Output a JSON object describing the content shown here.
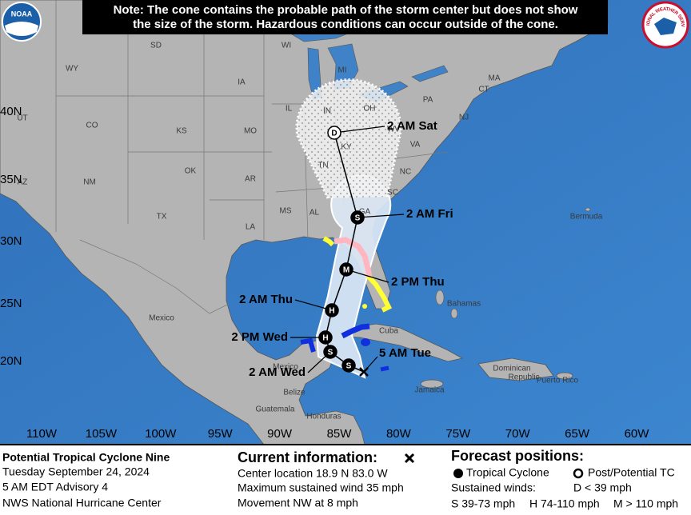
{
  "note": [
    "Note: The cone contains the probable path of the storm center but does not show",
    "the size of the storm. Hazardous conditions can occur outside of the cone."
  ],
  "logos": {
    "noaa": "NOAA",
    "nws": "NATIONAL WEATHER SERVICE"
  },
  "map": {
    "latitude_labels": [
      "40N",
      "35N",
      "30N",
      "25N",
      "20N"
    ],
    "longitude_labels": [
      "110W",
      "105W",
      "100W",
      "95W",
      "90W",
      "85W",
      "80W",
      "75W",
      "70W",
      "65W",
      "60W"
    ],
    "region_labels": [
      "WY",
      "SD",
      "WI",
      "MI",
      "IA",
      "IL",
      "IN",
      "OH",
      "PA",
      "MA",
      "CT",
      "NJ",
      "WV",
      "VA",
      "KY",
      "TN",
      "NC",
      "SC",
      "GA",
      "AL",
      "MS",
      "LA",
      "AR",
      "MO",
      "KS",
      "OK",
      "TX",
      "NM",
      "CO",
      "UT",
      "AZ",
      "Mexico",
      "Mexico",
      "Bermuda",
      "Bahamas",
      "Cuba",
      "Jamaica",
      "Dominican",
      "Republic",
      "Puerto Rico",
      "Belize",
      "Guatemala",
      "Honduras"
    ]
  },
  "forecast": {
    "points": [
      {
        "symbol": "D",
        "label": "2 AM Sat"
      },
      {
        "symbol": "S",
        "label": "2 AM Fri"
      },
      {
        "symbol": "M",
        "label": "2 PM Thu"
      },
      {
        "symbol": "H",
        "label": "2 AM Thu"
      },
      {
        "symbol": "H",
        "label": "2 PM Wed"
      },
      {
        "symbol": "S",
        "label": "2 AM Wed"
      },
      {
        "symbol": "S",
        "label": null
      }
    ],
    "current_label": "5 AM Tue"
  },
  "info": {
    "storm": "Potential Tropical Cyclone Nine",
    "date": "Tuesday September 24, 2024",
    "advisory": "5 AM EDT Advisory 4",
    "center": "NWS National Hurricane Center"
  },
  "current": {
    "title": "Current information:",
    "lines": [
      "Center location 18.9 N 83.0 W",
      "Maximum sustained wind 35 mph",
      "Movement NW at 8 mph"
    ]
  },
  "legend": {
    "title": "Forecast positions:",
    "tropical_cyclone": "Tropical Cyclone",
    "post_potential": "Post/Potential TC",
    "winds_title": "Sustained winds:",
    "d": "D < 39 mph",
    "s": "S 39-73 mph",
    "h": "H 74-110 mph",
    "m": "M > 110 mph"
  }
}
